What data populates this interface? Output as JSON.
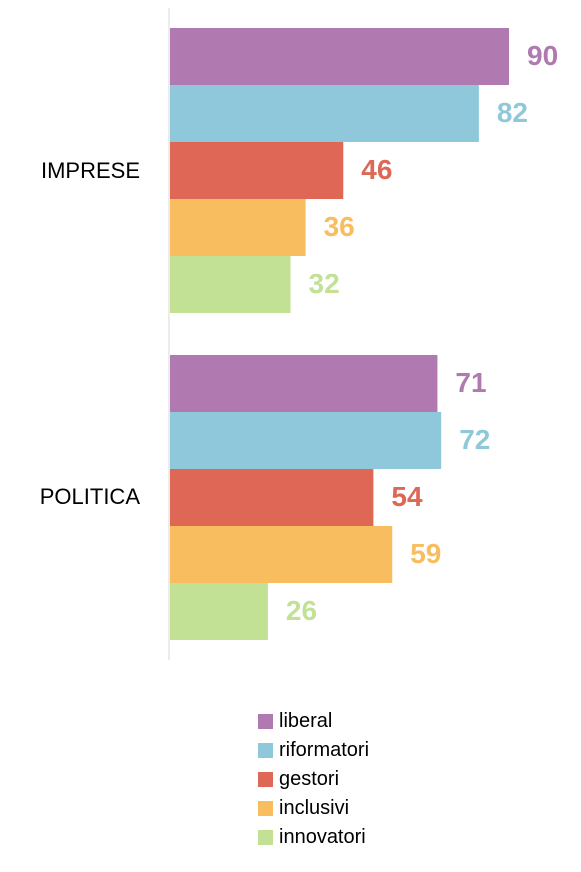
{
  "chart_data": {
    "type": "bar",
    "orientation": "horizontal",
    "categories": [
      "IMPRESE",
      "POLITICA"
    ],
    "series": [
      {
        "name": "liberal",
        "color": "#b07ab1",
        "values": [
          90,
          71
        ]
      },
      {
        "name": "riformatori",
        "color": "#8ec8da",
        "values": [
          82,
          72
        ]
      },
      {
        "name": "gestori",
        "color": "#de6756",
        "values": [
          46,
          54
        ]
      },
      {
        "name": "inclusivi",
        "color": "#f8bd5e",
        "values": [
          36,
          59
        ]
      },
      {
        "name": "innovatori",
        "color": "#c2e195",
        "values": [
          32,
          26
        ]
      }
    ],
    "xlim": [
      0,
      100
    ],
    "grid": false,
    "data_labels": true,
    "legend_position": "bottom"
  }
}
